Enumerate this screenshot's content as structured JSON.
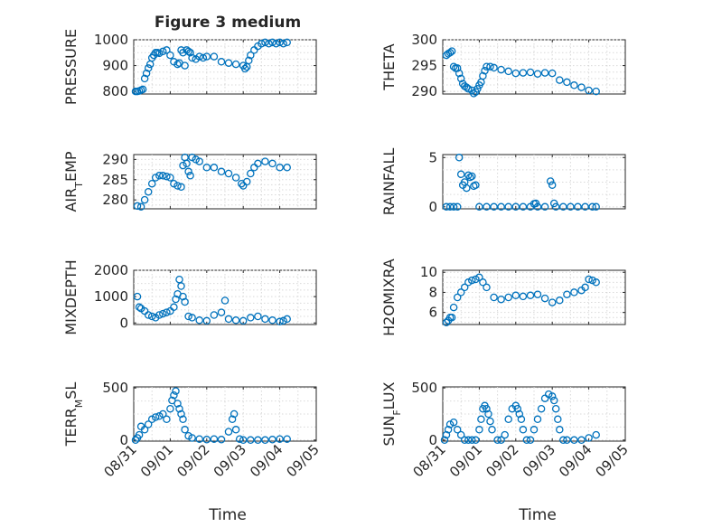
{
  "figure": {
    "title": "Figure 3 medium",
    "x_label": "Time",
    "marker_color": "#0072bd"
  },
  "chart_data": [
    {
      "type": "scatter",
      "ylabel": "PRESSURE",
      "xlim": [
        0,
        5
      ],
      "ylim": [
        790,
        1000
      ],
      "yticks": [
        800,
        900,
        1000
      ],
      "xticks": [
        "08/31",
        "09/01",
        "09/02",
        "09/03",
        "09/04",
        "09/05"
      ],
      "x": [
        0.05,
        0.1,
        0.15,
        0.2,
        0.25,
        0.3,
        0.35,
        0.4,
        0.45,
        0.5,
        0.55,
        0.6,
        0.65,
        0.7,
        0.8,
        0.9,
        1.0,
        1.1,
        1.2,
        1.25,
        1.3,
        1.35,
        1.4,
        1.45,
        1.5,
        1.55,
        1.6,
        1.7,
        1.8,
        1.9,
        2.0,
        2.2,
        2.4,
        2.6,
        2.8,
        3.0,
        3.05,
        3.1,
        3.15,
        3.2,
        3.3,
        3.4,
        3.5,
        3.6,
        3.7,
        3.8,
        3.9,
        4.0,
        4.1,
        4.2
      ],
      "y": [
        800,
        800,
        802,
        805,
        808,
        850,
        870,
        890,
        905,
        930,
        940,
        950,
        950,
        948,
        955,
        960,
        940,
        915,
        905,
        910,
        960,
        950,
        900,
        960,
        955,
        950,
        930,
        925,
        935,
        930,
        935,
        935,
        915,
        910,
        905,
        900,
        888,
        895,
        920,
        940,
        960,
        975,
        985,
        990,
        985,
        990,
        985,
        990,
        985,
        990
      ]
    },
    {
      "type": "scatter",
      "ylabel": "THETA",
      "xlim": [
        0,
        5
      ],
      "ylim": [
        289.5,
        300
      ],
      "yticks": [
        290,
        295,
        300
      ],
      "xticks": [
        "08/31",
        "09/01",
        "09/02",
        "09/03",
        "09/04",
        "09/05"
      ],
      "x": [
        0.1,
        0.15,
        0.2,
        0.25,
        0.3,
        0.35,
        0.4,
        0.45,
        0.5,
        0.55,
        0.6,
        0.65,
        0.7,
        0.8,
        0.85,
        0.9,
        0.95,
        1.0,
        1.05,
        1.1,
        1.15,
        1.2,
        1.3,
        1.4,
        1.6,
        1.8,
        2.0,
        2.2,
        2.4,
        2.6,
        2.8,
        3.0,
        3.2,
        3.4,
        3.6,
        3.8,
        4.0,
        4.2
      ],
      "y": [
        297,
        297.3,
        297.5,
        297.8,
        294.8,
        294.5,
        294.5,
        293.5,
        292.5,
        291.5,
        291,
        290.8,
        290.5,
        290.2,
        289.6,
        289.9,
        290.5,
        291.2,
        291.8,
        293,
        294,
        294.8,
        294.8,
        294.6,
        294.2,
        293.9,
        293.5,
        293.6,
        293.7,
        293.4,
        293.6,
        293.5,
        292.2,
        291.8,
        291.2,
        290.8,
        290.2,
        290
      ]
    },
    {
      "type": "scatter",
      "ylabel": "AIR_TEMP",
      "xlim": [
        0,
        5
      ],
      "ylim": [
        277.8,
        291.2
      ],
      "yticks": [
        280,
        285,
        290
      ],
      "xticks": [
        "08/31",
        "09/01",
        "09/02",
        "09/03",
        "09/04",
        "09/05"
      ],
      "x": [
        0.1,
        0.2,
        0.3,
        0.4,
        0.5,
        0.6,
        0.7,
        0.8,
        0.9,
        1.0,
        1.1,
        1.2,
        1.3,
        1.35,
        1.4,
        1.45,
        1.5,
        1.55,
        1.6,
        1.7,
        1.8,
        2.0,
        2.2,
        2.4,
        2.6,
        2.8,
        2.95,
        3.0,
        3.1,
        3.2,
        3.3,
        3.4,
        3.6,
        3.8,
        4.0,
        4.2
      ],
      "y": [
        278.5,
        278.3,
        280,
        282,
        284,
        285.5,
        286,
        286,
        285.8,
        285.5,
        284,
        283.5,
        283.2,
        288.5,
        290.5,
        289,
        287,
        286,
        290.5,
        290,
        289.5,
        288,
        288,
        287,
        286.5,
        285.5,
        284,
        283.5,
        284.5,
        286.5,
        288,
        289,
        289.5,
        289,
        288,
        288
      ]
    },
    {
      "type": "scatter",
      "ylabel": "RAINFALL",
      "xlim": [
        0,
        5
      ],
      "ylim": [
        -0.2,
        5.3
      ],
      "yticks": [
        0,
        5
      ],
      "xticks": [
        "08/31",
        "09/01",
        "09/02",
        "09/03",
        "09/04",
        "09/05"
      ],
      "x": [
        0.1,
        0.2,
        0.3,
        0.4,
        0.45,
        0.5,
        0.55,
        0.6,
        0.65,
        0.7,
        0.75,
        0.8,
        0.85,
        0.9,
        1.0,
        1.2,
        1.4,
        1.6,
        1.8,
        2.0,
        2.2,
        2.4,
        2.5,
        2.55,
        2.6,
        2.8,
        2.95,
        3.0,
        3.05,
        3.1,
        3.3,
        3.5,
        3.7,
        3.9,
        4.1,
        4.2
      ],
      "y": [
        0,
        0,
        0,
        0,
        5,
        3.3,
        2.2,
        2.5,
        1.9,
        3.2,
        3,
        3.1,
        2.1,
        2.2,
        0,
        0,
        0,
        0,
        0,
        0,
        0,
        0,
        0.3,
        0.35,
        0,
        0,
        2.6,
        2.2,
        0.35,
        0,
        0,
        0,
        0,
        0,
        0,
        0
      ]
    },
    {
      "type": "scatter",
      "ylabel": "MIXDEPTH",
      "xlim": [
        0,
        5
      ],
      "ylim": [
        -60,
        2000
      ],
      "yticks": [
        0,
        1000,
        2000
      ],
      "xticks": [
        "08/31",
        "09/01",
        "09/02",
        "09/03",
        "09/04",
        "09/05"
      ],
      "x": [
        0.1,
        0.15,
        0.2,
        0.3,
        0.4,
        0.5,
        0.6,
        0.7,
        0.8,
        0.9,
        1.0,
        1.1,
        1.15,
        1.2,
        1.25,
        1.3,
        1.35,
        1.4,
        1.5,
        1.6,
        1.8,
        2.0,
        2.2,
        2.4,
        2.5,
        2.6,
        2.8,
        3.0,
        3.2,
        3.4,
        3.6,
        3.8,
        4.0,
        4.1,
        4.2
      ],
      "y": [
        1000,
        600,
        550,
        450,
        300,
        250,
        200,
        300,
        350,
        400,
        450,
        600,
        900,
        1100,
        1650,
        1400,
        1000,
        800,
        250,
        200,
        100,
        80,
        300,
        400,
        850,
        150,
        100,
        80,
        200,
        250,
        150,
        100,
        50,
        80,
        150
      ]
    },
    {
      "type": "scatter",
      "ylabel": "H2OMIXRA",
      "xlim": [
        0,
        5
      ],
      "ylim": [
        4.8,
        10.2
      ],
      "yticks": [
        6,
        8,
        10
      ],
      "xticks": [
        "08/31",
        "09/01",
        "09/02",
        "09/03",
        "09/04",
        "09/05"
      ],
      "x": [
        0.1,
        0.15,
        0.2,
        0.25,
        0.3,
        0.4,
        0.5,
        0.6,
        0.7,
        0.8,
        0.9,
        1.0,
        1.1,
        1.2,
        1.4,
        1.6,
        1.8,
        2.0,
        2.2,
        2.4,
        2.6,
        2.8,
        3.0,
        3.2,
        3.4,
        3.6,
        3.8,
        3.9,
        4.0,
        4.1,
        4.2
      ],
      "y": [
        5,
        5.2,
        5.5,
        5.5,
        6.5,
        7.5,
        8,
        8.5,
        9,
        9.2,
        9.3,
        9.5,
        9,
        8.5,
        7.5,
        7.3,
        7.5,
        7.7,
        7.6,
        7.7,
        7.8,
        7.4,
        7,
        7.2,
        7.8,
        8,
        8.2,
        8.5,
        9.3,
        9.2,
        9
      ]
    },
    {
      "type": "scatter",
      "ylabel": "TERR_MSL",
      "xlim": [
        0,
        5
      ],
      "ylim": [
        -10,
        510
      ],
      "yticks": [
        0,
        500
      ],
      "xticks": [
        "08/31",
        "09/01",
        "09/02",
        "09/03",
        "09/04",
        "09/05"
      ],
      "x": [
        0.05,
        0.1,
        0.15,
        0.2,
        0.3,
        0.4,
        0.5,
        0.6,
        0.7,
        0.8,
        0.9,
        1.0,
        1.05,
        1.1,
        1.15,
        1.2,
        1.25,
        1.3,
        1.35,
        1.4,
        1.5,
        1.6,
        1.8,
        2.0,
        2.2,
        2.4,
        2.6,
        2.7,
        2.75,
        2.8,
        2.9,
        3.0,
        3.2,
        3.4,
        3.6,
        3.8,
        4.0,
        4.2
      ],
      "y": [
        0,
        20,
        50,
        130,
        100,
        150,
        200,
        220,
        230,
        250,
        200,
        300,
        380,
        430,
        470,
        350,
        300,
        250,
        200,
        100,
        40,
        20,
        10,
        5,
        10,
        5,
        80,
        200,
        250,
        100,
        10,
        0,
        0,
        0,
        0,
        5,
        10,
        10
      ]
    },
    {
      "type": "scatter",
      "ylabel": "SUN_FLUX",
      "xlim": [
        0,
        5
      ],
      "ylim": [
        -10,
        510
      ],
      "yticks": [
        0,
        500
      ],
      "xticks": [
        "08/31",
        "09/01",
        "09/02",
        "09/03",
        "09/04",
        "09/05"
      ],
      "x": [
        0.05,
        0.1,
        0.15,
        0.2,
        0.3,
        0.4,
        0.5,
        0.6,
        0.7,
        0.8,
        0.9,
        1.0,
        1.05,
        1.1,
        1.15,
        1.2,
        1.25,
        1.3,
        1.35,
        1.5,
        1.6,
        1.7,
        1.8,
        1.9,
        2.0,
        2.05,
        2.1,
        2.15,
        2.2,
        2.3,
        2.4,
        2.5,
        2.6,
        2.7,
        2.8,
        2.9,
        3.0,
        3.05,
        3.1,
        3.15,
        3.2,
        3.3,
        3.4,
        3.6,
        3.8,
        4.0,
        4.2
      ],
      "y": [
        0,
        50,
        100,
        150,
        170,
        100,
        50,
        0,
        0,
        0,
        0,
        100,
        200,
        300,
        330,
        300,
        250,
        180,
        100,
        0,
        0,
        50,
        200,
        300,
        330,
        300,
        250,
        200,
        100,
        0,
        0,
        100,
        200,
        300,
        400,
        440,
        420,
        380,
        300,
        200,
        100,
        0,
        0,
        0,
        0,
        20,
        50
      ]
    }
  ]
}
